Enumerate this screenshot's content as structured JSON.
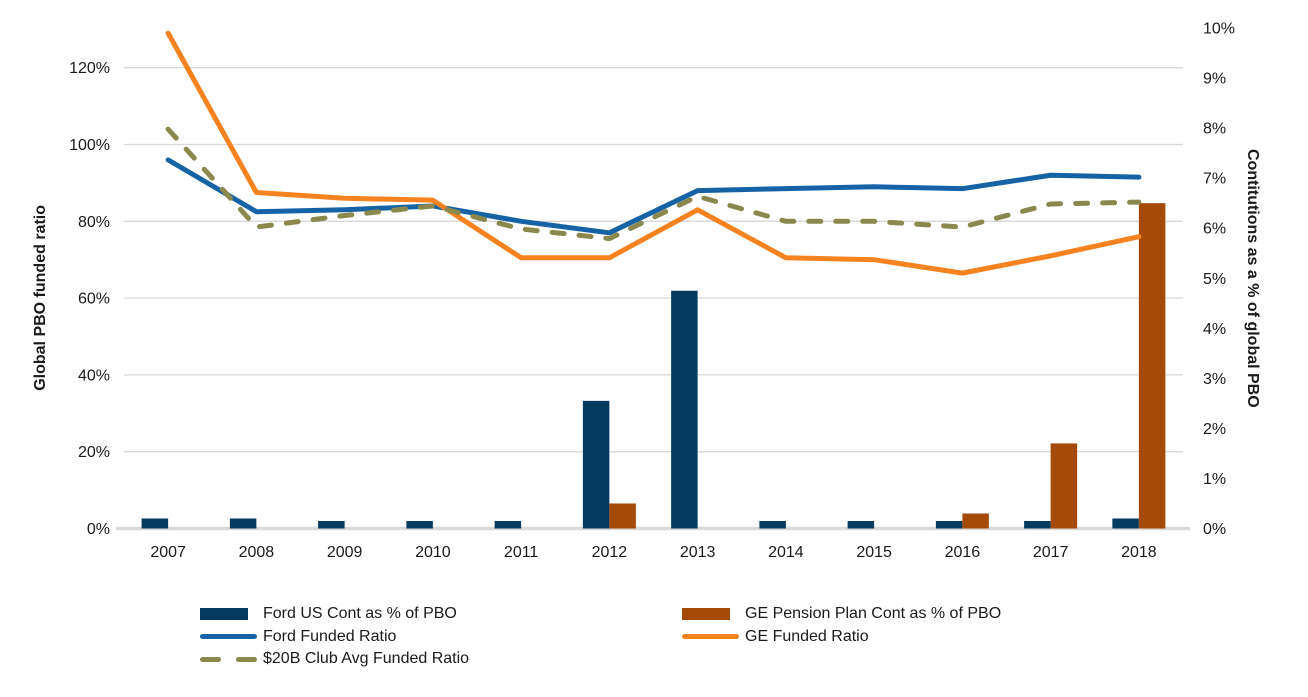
{
  "chart_data": {
    "type": "combo",
    "categories": [
      "2007",
      "2008",
      "2009",
      "2010",
      "2011",
      "2012",
      "2013",
      "2014",
      "2015",
      "2016",
      "2017",
      "2018"
    ],
    "series": [
      {
        "name": "Ford US Cont as % of PBO",
        "type": "bar",
        "axis": "right",
        "color": "#053a5f",
        "values": [
          0.2,
          0.2,
          0.15,
          0.15,
          0.15,
          2.55,
          4.75,
          0.15,
          0.15,
          0.15,
          0.15,
          0.2
        ]
      },
      {
        "name": "GE Pension Plan Cont as % of PBO",
        "type": "bar",
        "axis": "right",
        "color": "#a54b09",
        "values": [
          0,
          0,
          0,
          0,
          0,
          0.5,
          0,
          0,
          0,
          0.3,
          1.7,
          6.5
        ]
      },
      {
        "name": "Ford Funded Ratio",
        "type": "line",
        "axis": "left",
        "color": "#1563a5",
        "dashed": false,
        "values": [
          96,
          82.5,
          83,
          84,
          80,
          77,
          88,
          88.5,
          89,
          88.5,
          92,
          91.5
        ]
      },
      {
        "name": "GE Funded Ratio",
        "type": "line",
        "axis": "left",
        "color": "#f68320",
        "dashed": false,
        "values": [
          129,
          87.5,
          86,
          85.5,
          70.5,
          70.5,
          83,
          70.5,
          70,
          66.5,
          71,
          76
        ]
      },
      {
        "name": "$20B Club Avg Funded Ratio",
        "type": "line",
        "axis": "left",
        "color": "#8a884c",
        "dashed": true,
        "values": [
          104,
          78.5,
          81.5,
          84,
          78,
          75.5,
          86.5,
          80,
          80,
          78.5,
          84.5,
          85
        ]
      }
    ],
    "left_axis": {
      "title": "Global PBO funded ratio",
      "ticks": [
        0,
        20,
        40,
        60,
        80,
        100,
        120
      ],
      "tick_suffix": "%",
      "range": [
        0,
        120
      ]
    },
    "right_axis": {
      "title": "Contitutions as a % of global PBO",
      "ticks": [
        0,
        1,
        2,
        3,
        4,
        5,
        6,
        7,
        8,
        9,
        10
      ],
      "tick_suffix": "%",
      "range": [
        0,
        10
      ]
    },
    "grid": "horizontal",
    "legend": {
      "position": "bottom",
      "entries": [
        {
          "label": "Ford US Cont as % of PBO",
          "marker": "bar",
          "color": "#053a5f"
        },
        {
          "label": "Ford Funded Ratio",
          "marker": "line",
          "color": "#1563a5"
        },
        {
          "label": "$20B Club Avg Funded Ratio",
          "marker": "dashed",
          "color": "#8a884c"
        },
        {
          "label": "GE Pension Plan Cont as % of PBO",
          "marker": "bar",
          "color": "#a54b09"
        },
        {
          "label": "GE Funded Ratio",
          "marker": "line",
          "color": "#f68320"
        }
      ]
    },
    "colors": {
      "gridline": "#d9d9d9",
      "baseline": "#d9d9d9",
      "text": "#1a1a1a"
    }
  }
}
